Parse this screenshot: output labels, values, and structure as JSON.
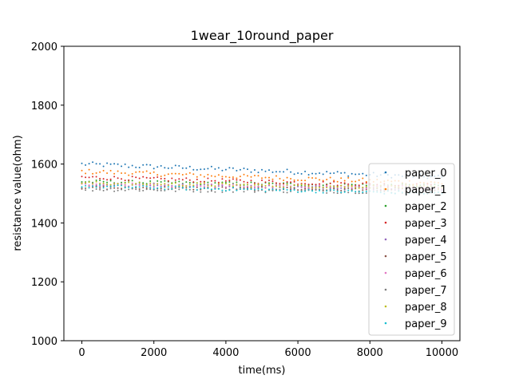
{
  "chart_data": {
    "type": "scatter",
    "title": "1wear_10round_paper",
    "xlabel": "time(ms)",
    "ylabel": "resistance value(ohm)",
    "xlim": [
      -500,
      10500
    ],
    "ylim": [
      1000,
      2000
    ],
    "xticks": [
      0,
      2000,
      4000,
      6000,
      8000,
      10000
    ],
    "yticks": [
      1000,
      1200,
      1400,
      1600,
      1800,
      2000
    ],
    "xtick_labels": [
      "0",
      "2000",
      "4000",
      "6000",
      "8000",
      "10000"
    ],
    "ytick_labels": [
      "1000",
      "1200",
      "1400",
      "1600",
      "1800",
      "2000"
    ],
    "legend_position": "right",
    "x_step": 100,
    "x_range": [
      0,
      10000
    ],
    "series": [
      {
        "name": "paper_0",
        "color": "#1f77b4",
        "start": 1600,
        "end": 1555,
        "noise": 8
      },
      {
        "name": "paper_1",
        "color": "#ff7f0e",
        "start": 1575,
        "end": 1535,
        "noise": 8
      },
      {
        "name": "paper_2",
        "color": "#2ca02c",
        "start": 1540,
        "end": 1525,
        "noise": 6
      },
      {
        "name": "paper_3",
        "color": "#d62728",
        "start": 1555,
        "end": 1525,
        "noise": 7
      },
      {
        "name": "paper_4",
        "color": "#9467bd",
        "start": 1530,
        "end": 1515,
        "noise": 6
      },
      {
        "name": "paper_5",
        "color": "#8c564b",
        "start": 1520,
        "end": 1512,
        "noise": 6
      },
      {
        "name": "paper_6",
        "color": "#e377c2",
        "start": 1530,
        "end": 1520,
        "noise": 6
      },
      {
        "name": "paper_7",
        "color": "#7f7f7f",
        "start": 1515,
        "end": 1505,
        "noise": 7
      },
      {
        "name": "paper_8",
        "color": "#bcbd22",
        "start": 1535,
        "end": 1520,
        "noise": 6
      },
      {
        "name": "paper_9",
        "color": "#17becf",
        "start": 1525,
        "end": 1500,
        "noise": 6
      }
    ]
  }
}
